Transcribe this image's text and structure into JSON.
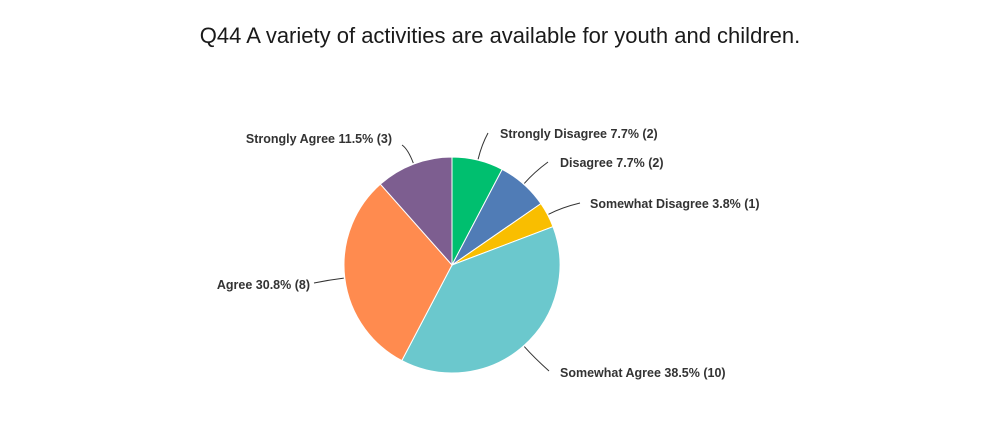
{
  "chart_data": {
    "type": "pie",
    "title": "Q44 A variety of activities are available for youth and children.",
    "slices": [
      {
        "name": "Strongly Disagree",
        "percent": 7.7,
        "count": 2,
        "label": "Strongly Disagree 7.7% (2)",
        "color": "#00BF6F"
      },
      {
        "name": "Disagree",
        "percent": 7.7,
        "count": 2,
        "label": "Disagree 7.7% (2)",
        "color": "#507CB6"
      },
      {
        "name": "Somewhat Disagree",
        "percent": 3.8,
        "count": 1,
        "label": "Somewhat Disagree 3.8% (1)",
        "color": "#F9BE00"
      },
      {
        "name": "Somewhat Agree",
        "percent": 38.5,
        "count": 10,
        "label": "Somewhat Agree 38.5% (10)",
        "color": "#6BC8CD"
      },
      {
        "name": "Agree",
        "percent": 30.8,
        "count": 8,
        "label": "Agree 30.8% (8)",
        "color": "#FF8B4F"
      },
      {
        "name": "Strongly Agree",
        "percent": 11.5,
        "count": 3,
        "label": "Strongly Agree 11.5% (3)",
        "color": "#7D5E90"
      }
    ]
  }
}
